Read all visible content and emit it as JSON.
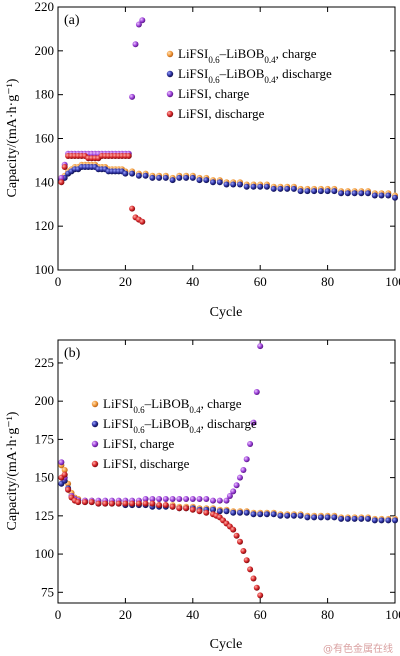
{
  "chart_data": [
    {
      "type": "scatter",
      "panel_label": "(a)",
      "xlabel": "Cycle",
      "ylabel": "Capacity/(mA·h·g⁻¹)",
      "xlim": [
        0,
        100
      ],
      "ylim": [
        100,
        220
      ],
      "xticks": [
        "0",
        "20",
        "40",
        "60",
        "80",
        "100"
      ],
      "yticks": [
        "100",
        "120",
        "140",
        "160",
        "180",
        "200",
        "220"
      ],
      "legend_position": "upper-right",
      "series": [
        {
          "name": "LiFSI0.6–LiBOB0.4, charge",
          "color": "#f29a3a",
          "marker": "orange-sphere",
          "x": [
            1,
            2,
            3,
            4,
            5,
            6,
            7,
            8,
            9,
            10,
            11,
            12,
            13,
            14,
            15,
            16,
            17,
            18,
            19,
            20,
            22,
            24,
            26,
            28,
            30,
            32,
            34,
            36,
            38,
            40,
            42,
            44,
            46,
            48,
            50,
            52,
            54,
            56,
            58,
            60,
            62,
            64,
            66,
            68,
            70,
            72,
            74,
            76,
            78,
            80,
            82,
            84,
            86,
            88,
            90,
            92,
            94,
            96,
            98,
            100
          ],
          "y": [
            142,
            143,
            145,
            146,
            147,
            147,
            148,
            148,
            148,
            148,
            148,
            147,
            147,
            147,
            146,
            146,
            146,
            146,
            146,
            145,
            145,
            144,
            144,
            143,
            143,
            143,
            142,
            143,
            143,
            143,
            142,
            142,
            141,
            141,
            140,
            140,
            140,
            139,
            139,
            139,
            139,
            138,
            138,
            138,
            138,
            137,
            137,
            137,
            137,
            137,
            137,
            136,
            136,
            136,
            136,
            136,
            135,
            135,
            135,
            134
          ]
        },
        {
          "name": "LiFSI0.6–LiBOB0.4, discharge",
          "color": "#2b2f9e",
          "marker": "blue-sphere",
          "x": [
            1,
            2,
            3,
            4,
            5,
            6,
            7,
            8,
            9,
            10,
            11,
            12,
            13,
            14,
            15,
            16,
            17,
            18,
            19,
            20,
            22,
            24,
            26,
            28,
            30,
            32,
            34,
            36,
            38,
            40,
            42,
            44,
            46,
            48,
            50,
            52,
            54,
            56,
            58,
            60,
            62,
            64,
            66,
            68,
            70,
            72,
            74,
            76,
            78,
            80,
            82,
            84,
            86,
            88,
            90,
            92,
            94,
            96,
            98,
            100
          ],
          "y": [
            141,
            142,
            144,
            145,
            146,
            146,
            147,
            147,
            147,
            147,
            147,
            146,
            146,
            146,
            145,
            145,
            145,
            145,
            145,
            144,
            144,
            143,
            143,
            142,
            142,
            142,
            141,
            142,
            142,
            142,
            141,
            141,
            140,
            140,
            139,
            139,
            139,
            138,
            138,
            138,
            138,
            137,
            137,
            137,
            137,
            136,
            136,
            136,
            136,
            136,
            136,
            135,
            135,
            135,
            135,
            135,
            134,
            134,
            134,
            133
          ]
        },
        {
          "name": "LiFSI, charge",
          "color": "#9b3fd8",
          "marker": "purple-sphere",
          "x": [
            1,
            2,
            3,
            4,
            5,
            6,
            7,
            8,
            9,
            10,
            11,
            12,
            13,
            14,
            15,
            16,
            17,
            18,
            19,
            20,
            21,
            22,
            23,
            24,
            25
          ],
          "y": [
            142,
            148,
            153,
            153,
            153,
            153,
            153,
            153,
            153,
            153,
            153,
            153,
            153,
            153,
            153,
            153,
            153,
            153,
            153,
            153,
            153,
            179,
            203,
            212,
            214
          ]
        },
        {
          "name": "LiFSI, discharge",
          "color": "#d8262a",
          "marker": "red-sphere",
          "x": [
            1,
            2,
            3,
            4,
            5,
            6,
            7,
            8,
            9,
            10,
            11,
            12,
            13,
            14,
            15,
            16,
            17,
            18,
            19,
            20,
            21,
            22,
            23,
            24,
            25
          ],
          "y": [
            140,
            147,
            152,
            152,
            152,
            152,
            152,
            152,
            151,
            151,
            151,
            151,
            152,
            152,
            152,
            152,
            152,
            152,
            152,
            152,
            152,
            128,
            124,
            123,
            122
          ]
        }
      ]
    },
    {
      "type": "scatter",
      "panel_label": "(b)",
      "xlabel": "Cycle",
      "ylabel": "Capacity/(mA·h·g⁻¹)",
      "xlim": [
        0,
        100
      ],
      "ylim": [
        68,
        240
      ],
      "xticks": [
        "0",
        "20",
        "40",
        "60",
        "80",
        "100"
      ],
      "yticks": [
        "75",
        "100",
        "125",
        "150",
        "175",
        "200",
        "225"
      ],
      "legend_position": "upper-left",
      "series": [
        {
          "name": "LiFSI0.6–LiBOB0.4, charge",
          "color": "#f29a3a",
          "marker": "orange-sphere",
          "x": [
            1,
            2,
            3,
            4,
            5,
            6,
            8,
            10,
            12,
            14,
            16,
            18,
            20,
            22,
            24,
            26,
            28,
            30,
            32,
            34,
            36,
            38,
            40,
            42,
            44,
            46,
            48,
            50,
            52,
            54,
            56,
            58,
            60,
            62,
            64,
            66,
            68,
            70,
            72,
            74,
            76,
            78,
            80,
            82,
            84,
            86,
            88,
            90,
            92,
            94,
            96,
            98,
            100
          ],
          "y": [
            158,
            155,
            146,
            140,
            137,
            136,
            135,
            135,
            134,
            134,
            134,
            134,
            133,
            133,
            133,
            133,
            132,
            132,
            132,
            132,
            131,
            131,
            131,
            130,
            130,
            130,
            129,
            129,
            128,
            128,
            128,
            127,
            127,
            127,
            127,
            126,
            126,
            126,
            126,
            125,
            125,
            125,
            125,
            125,
            124,
            124,
            124,
            124,
            124,
            123,
            123,
            123,
            123
          ]
        },
        {
          "name": "LiFSI0.6–LiBOB0.4, discharge",
          "color": "#2b2f9e",
          "marker": "blue-sphere",
          "x": [
            1,
            2,
            3,
            4,
            5,
            6,
            8,
            10,
            12,
            14,
            16,
            18,
            20,
            22,
            24,
            26,
            28,
            30,
            32,
            34,
            36,
            38,
            40,
            42,
            44,
            46,
            48,
            50,
            52,
            54,
            56,
            58,
            60,
            62,
            64,
            66,
            68,
            70,
            72,
            74,
            76,
            78,
            80,
            82,
            84,
            86,
            88,
            90,
            92,
            94,
            96,
            98,
            100
          ],
          "y": [
            146,
            148,
            143,
            138,
            136,
            135,
            134,
            134,
            133,
            133,
            133,
            133,
            132,
            132,
            132,
            132,
            131,
            131,
            131,
            131,
            130,
            130,
            130,
            129,
            129,
            129,
            128,
            128,
            127,
            127,
            127,
            126,
            126,
            126,
            126,
            125,
            125,
            125,
            125,
            124,
            124,
            124,
            124,
            124,
            123,
            123,
            123,
            123,
            123,
            122,
            122,
            122,
            122
          ]
        },
        {
          "name": "LiFSI, charge",
          "color": "#9b3fd8",
          "marker": "purple-sphere",
          "x": [
            1,
            2,
            3,
            4,
            5,
            6,
            8,
            10,
            12,
            14,
            16,
            18,
            20,
            22,
            24,
            26,
            28,
            30,
            32,
            34,
            36,
            38,
            40,
            42,
            44,
            46,
            48,
            50,
            51,
            52,
            53,
            54,
            55,
            56,
            57,
            58,
            59,
            60
          ],
          "y": [
            160,
            150,
            142,
            138,
            136,
            135,
            135,
            135,
            135,
            135,
            135,
            135,
            135,
            135,
            135,
            136,
            136,
            136,
            136,
            136,
            136,
            136,
            136,
            136,
            136,
            135,
            135,
            135,
            138,
            141,
            145,
            150,
            155,
            162,
            172,
            186,
            206,
            236
          ]
        },
        {
          "name": "LiFSI, discharge",
          "color": "#d8262a",
          "marker": "red-sphere",
          "x": [
            1,
            2,
            3,
            4,
            5,
            6,
            8,
            10,
            12,
            14,
            16,
            18,
            20,
            22,
            24,
            26,
            28,
            30,
            32,
            34,
            36,
            38,
            40,
            42,
            44,
            46,
            47,
            48,
            49,
            50,
            51,
            52,
            53,
            54,
            55,
            56,
            57,
            58,
            59,
            60
          ],
          "y": [
            150,
            152,
            142,
            137,
            135,
            134,
            134,
            134,
            133,
            133,
            133,
            133,
            133,
            133,
            133,
            133,
            133,
            132,
            132,
            131,
            130,
            130,
            129,
            128,
            127,
            126,
            125,
            124,
            122,
            120,
            118,
            116,
            112,
            108,
            102,
            96,
            90,
            84,
            78,
            73
          ]
        }
      ]
    }
  ],
  "legend": [
    {
      "base": "LiFSI",
      "sub1": "0.6",
      "mid": "–LiBOB",
      "sub2": "0.4",
      "tail": ", charge"
    },
    {
      "base": "LiFSI",
      "sub1": "0.6",
      "mid": "–LiBOB",
      "sub2": "0.4",
      "tail": ", discharge"
    },
    {
      "base": "LiFSI, charge"
    },
    {
      "base": "LiFSI, discharge"
    }
  ],
  "watermark": "@有色金属在线"
}
